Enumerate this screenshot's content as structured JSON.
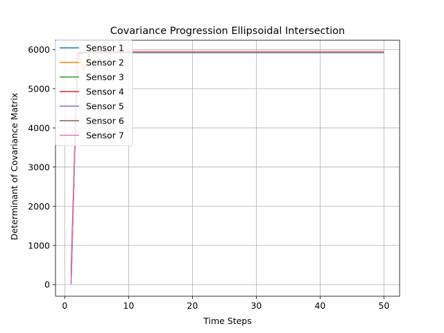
{
  "chart_data": {
    "type": "line",
    "title": "Covariance Progression Ellipsoidal Intersection",
    "xlabel": "Time Steps",
    "ylabel": "Determinant of Covariance Matrix",
    "xlim": [
      -1.45,
      52.45
    ],
    "ylim": [
      -297,
      6237
    ],
    "xticks": [
      0,
      10,
      20,
      30,
      40,
      50
    ],
    "yticks": [
      0,
      1000,
      2000,
      3000,
      4000,
      5000,
      6000
    ],
    "grid": true,
    "legend_position": "top-left",
    "series": [
      {
        "name": "Sensor 1",
        "color": "#1f77b4",
        "x": [
          1,
          2,
          3,
          50
        ],
        "y": [
          400,
          5880,
          5920,
          5920
        ]
      },
      {
        "name": "Sensor 2",
        "color": "#ff7f0e",
        "x": [
          1,
          2,
          3,
          4,
          50
        ],
        "y": [
          300,
          5940,
          5460,
          5950,
          5950
        ]
      },
      {
        "name": "Sensor 3",
        "color": "#2ca02c",
        "x": [
          1,
          2,
          3,
          50
        ],
        "y": [
          200,
          5900,
          5930,
          5930
        ]
      },
      {
        "name": "Sensor 4",
        "color": "#d62728",
        "x": [
          1,
          2,
          3,
          50
        ],
        "y": [
          100,
          5910,
          5935,
          5935
        ]
      },
      {
        "name": "Sensor 5",
        "color": "#9467bd",
        "x": [
          1,
          2,
          3,
          50
        ],
        "y": [
          50,
          5920,
          5940,
          5940
        ]
      },
      {
        "name": "Sensor 6",
        "color": "#8c564b",
        "x": [
          1,
          2,
          3,
          50
        ],
        "y": [
          20,
          5925,
          5940,
          5940
        ]
      },
      {
        "name": "Sensor 7",
        "color": "#e377c2",
        "x": [
          1,
          2,
          3,
          50
        ],
        "y": [
          0,
          5930,
          5940,
          5940
        ]
      }
    ]
  }
}
